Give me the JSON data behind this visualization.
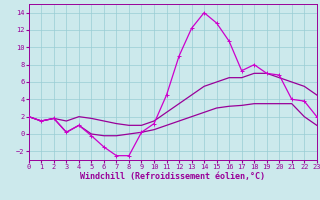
{
  "xlabel": "Windchill (Refroidissement éolien,°C)",
  "xlim": [
    0,
    23
  ],
  "ylim": [
    -3.0,
    15.0
  ],
  "yticks": [
    -2,
    0,
    2,
    4,
    6,
    8,
    10,
    12,
    14
  ],
  "xticks": [
    0,
    1,
    2,
    3,
    4,
    5,
    6,
    7,
    8,
    9,
    10,
    11,
    12,
    13,
    14,
    15,
    16,
    17,
    18,
    19,
    20,
    21,
    22,
    23
  ],
  "background_color": "#cce9ec",
  "grid_color": "#99cdd4",
  "line_color_dark": "#990099",
  "line_color_bright": "#cc00cc",
  "series1_x": [
    0,
    1,
    2,
    3,
    4,
    5,
    6,
    7,
    8,
    9,
    10,
    11,
    12,
    13,
    14,
    15,
    16,
    17,
    18,
    19,
    20,
    21,
    22,
    23
  ],
  "series1_y": [
    2.0,
    1.5,
    1.8,
    0.2,
    1.0,
    -0.2,
    -1.5,
    -2.5,
    -2.5,
    0.2,
    1.2,
    4.5,
    9.0,
    12.2,
    14.0,
    12.8,
    10.7,
    7.3,
    8.0,
    7.0,
    6.8,
    4.0,
    3.8,
    2.0
  ],
  "series2_x": [
    0,
    1,
    2,
    3,
    4,
    5,
    6,
    7,
    8,
    9,
    10,
    11,
    12,
    13,
    14,
    15,
    16,
    17,
    18,
    19,
    20,
    21,
    22,
    23
  ],
  "series2_y": [
    2.0,
    1.5,
    1.8,
    0.2,
    1.0,
    0.0,
    -0.2,
    -0.2,
    0.0,
    0.2,
    0.5,
    1.0,
    1.5,
    2.0,
    2.5,
    3.0,
    3.2,
    3.3,
    3.5,
    3.5,
    3.5,
    3.5,
    2.0,
    1.0
  ],
  "series3_x": [
    0,
    1,
    2,
    3,
    4,
    5,
    6,
    7,
    8,
    9,
    10,
    11,
    12,
    13,
    14,
    15,
    16,
    17,
    18,
    19,
    20,
    21,
    22,
    23
  ],
  "series3_y": [
    2.0,
    1.5,
    1.8,
    1.5,
    2.0,
    1.8,
    1.5,
    1.2,
    1.0,
    1.0,
    1.5,
    2.5,
    3.5,
    4.5,
    5.5,
    6.0,
    6.5,
    6.5,
    7.0,
    7.0,
    6.5,
    6.0,
    5.5,
    4.5
  ],
  "marker": "+",
  "marker_size": 3,
  "line_width": 0.9,
  "tick_fontsize": 5.0,
  "label_fontsize": 6.0
}
